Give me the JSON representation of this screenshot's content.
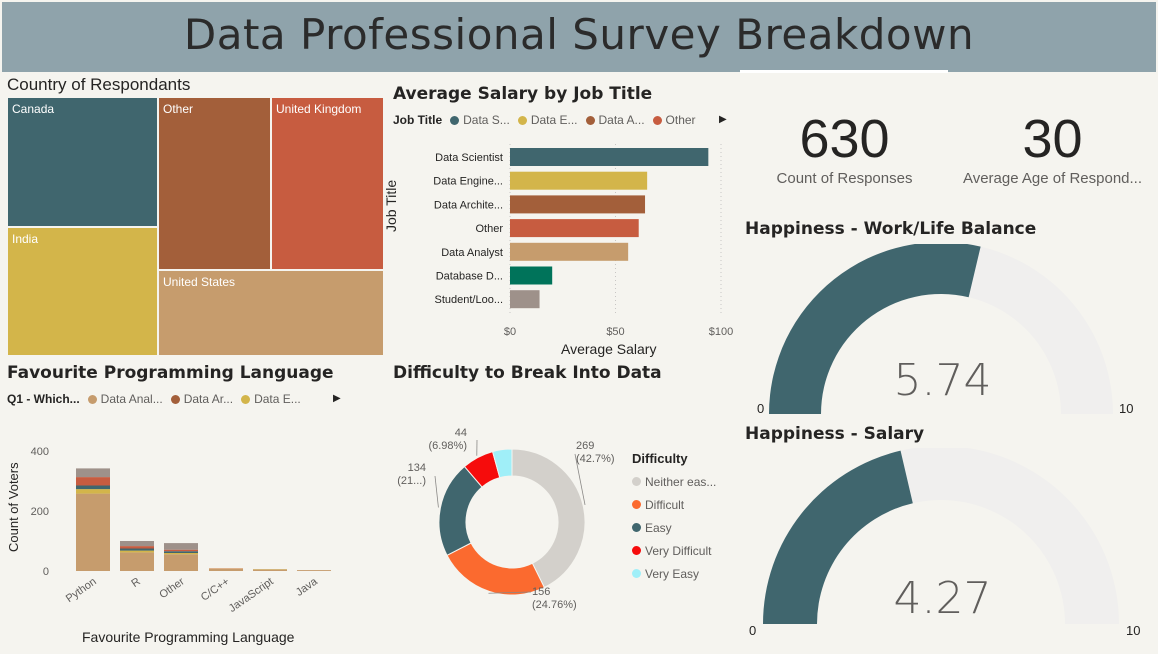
{
  "page_title": "Data Professional Survey Breakdown",
  "colors": {
    "header_bg": "#8fa3ab",
    "teal": "#40666e",
    "gold": "#d3b54a",
    "brown": "#a35f3a",
    "orange_red": "#c75c40",
    "tan": "#c69c6d",
    "green": "#00735a",
    "gray": "#9e918a",
    "gauge_track": "#f0efee",
    "donut_gray": "#d3d0cb",
    "donut_orange": "#fb6a2f",
    "donut_red": "#f60c0c",
    "donut_cyan": "#a0eff8"
  },
  "country": {
    "title": "Country of Respondants",
    "cells": [
      {
        "label": "Canada",
        "color": "#40666e"
      },
      {
        "label": "India",
        "color": "#d3b54a"
      },
      {
        "label": "Other",
        "color": "#a35f3a"
      },
      {
        "label": "United Kingdom",
        "color": "#c75c40"
      },
      {
        "label": "United States",
        "color": "#c69c6d"
      }
    ]
  },
  "salary": {
    "title": "Average Salary by Job Title",
    "legend_title": "Job Title",
    "legend_items": [
      {
        "label": "Data S...",
        "color": "#40666e"
      },
      {
        "label": "Data E...",
        "color": "#d3b54a"
      },
      {
        "label": "Data A...",
        "color": "#a35f3a"
      },
      {
        "label": "Other",
        "color": "#c75c40"
      }
    ],
    "y_axis_title": "Job Title",
    "x_axis_title": "Average Salary"
  },
  "language": {
    "title": "Favourite Programming Language",
    "legend_title": "Q1 - Which...",
    "legend_items": [
      {
        "label": "Data Anal...",
        "color": "#c69c6d"
      },
      {
        "label": "Data Ar...",
        "color": "#a35f3a"
      },
      {
        "label": "Data E...",
        "color": "#d3b54a"
      }
    ],
    "y_axis_title": "Count of Voters",
    "x_axis_title": "Favourite Programming Language"
  },
  "difficulty": {
    "title": "Difficulty to Break Into Data",
    "legend_title": "Difficulty",
    "legend_items": [
      {
        "label": "Neither eas...",
        "color": "#d3d0cb"
      },
      {
        "label": "Difficult",
        "color": "#fb6a2f"
      },
      {
        "label": "Easy",
        "color": "#40666e"
      },
      {
        "label": "Very Difficult",
        "color": "#f60c0c"
      },
      {
        "label": "Very Easy",
        "color": "#a0eff8"
      }
    ]
  },
  "kpis": [
    {
      "value": "630",
      "label": "Count of Responses"
    },
    {
      "value": "30",
      "label": "Average Age of Respond..."
    }
  ],
  "gauges": [
    {
      "title": "Happiness - Work/Life Balance",
      "value_text": "5.74",
      "min": "0",
      "max": "10"
    },
    {
      "title": "Happiness - Salary",
      "value_text": "4.27",
      "min": "0",
      "max": "10"
    }
  ],
  "chart_data": [
    {
      "type": "treemap",
      "title": "Country of Respondants",
      "categories": [
        "Canada",
        "India",
        "Other",
        "United Kingdom",
        "United States"
      ]
    },
    {
      "type": "bar",
      "orientation": "horizontal",
      "title": "Average Salary by Job Title",
      "categories": [
        "Data Scientist",
        "Data Engine...",
        "Data Archite...",
        "Other",
        "Data Analyst",
        "Database D...",
        "Student/Loo..."
      ],
      "values": [
        94,
        65,
        64,
        61,
        56,
        20,
        14
      ],
      "colors": [
        "#40666e",
        "#d3b54a",
        "#a35f3a",
        "#c75c40",
        "#c69c6d",
        "#00735a",
        "#9e918a"
      ],
      "xlabel": "Average Salary",
      "ylabel": "Job Title",
      "xlim": [
        0,
        100
      ],
      "x_ticks": [
        "$0",
        "$50",
        "$100"
      ],
      "grid": "vertical dashed"
    },
    {
      "type": "bar",
      "stacked": true,
      "title": "Favourite Programming Language",
      "categories": [
        "Python",
        "R",
        "Other",
        "C/C++",
        "JavaScript",
        "Java"
      ],
      "series": [
        {
          "name": "Data Anal...",
          "color": "#c69c6d",
          "values": [
            258,
            62,
            56,
            7,
            5,
            3
          ]
        },
        {
          "color": "#d3b54a",
          "values": [
            15,
            6,
            4,
            1,
            1,
            0
          ]
        },
        {
          "color": "#40666e",
          "values": [
            12,
            7,
            6,
            0,
            0,
            0
          ]
        },
        {
          "color": "#c75c40",
          "values": [
            28,
            8,
            5,
            1,
            0,
            0
          ]
        },
        {
          "color": "#9e918a",
          "values": [
            29,
            17,
            22,
            0,
            0,
            0
          ]
        }
      ],
      "xlabel": "Favourite Programming Language",
      "ylabel": "Count of Voters",
      "ylim": [
        0,
        450
      ],
      "y_ticks": [
        0,
        200,
        400
      ]
    },
    {
      "type": "pie",
      "donut": true,
      "title": "Difficulty to Break Into Data",
      "slices": [
        {
          "label": "Neither eas...",
          "value": 269,
          "data_label": "269 (42.7%)",
          "color": "#d3d0cb"
        },
        {
          "label": "Difficult",
          "value": 156,
          "data_label": "156 (24.76%)",
          "color": "#fb6a2f"
        },
        {
          "label": "Easy",
          "value": 134,
          "data_label": "134 (21...)",
          "color": "#40666e"
        },
        {
          "label": "Very Difficult",
          "value": 44,
          "data_label": "44 (6.98%)",
          "color": "#f60c0c"
        },
        {
          "label": "Very Easy",
          "value": 27,
          "color": "#a0eff8"
        }
      ]
    },
    {
      "type": "gauge",
      "title": "Happiness - Work/Life Balance",
      "value": 5.74,
      "min": 0,
      "max": 10
    },
    {
      "type": "gauge",
      "title": "Happiness - Salary",
      "value": 4.27,
      "min": 0,
      "max": 10
    }
  ]
}
